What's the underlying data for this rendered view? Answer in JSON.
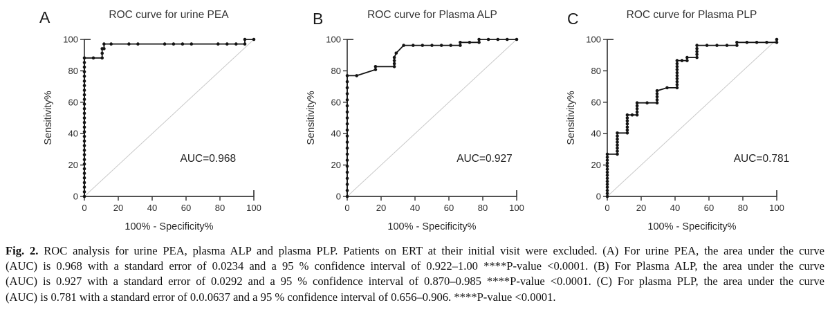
{
  "colors": {
    "curve": "#141414",
    "diagonal": "#c9c9c9",
    "axis": "#3a3a3a",
    "text": "#2a2a2a"
  },
  "caption": {
    "fig_label": "Fig. 2.",
    "lines": [
      "ROC analysis for urine PEA, plasma ALP and plasma PLP. Patients on ERT at their initial visit were excluded. (A) For urine PEA, the area under the curve",
      "(AUC) is 0.968 with a standard error of 0.0234 and a 95 % confidence interval of 0.922–1.00 ****P-value <0.0001. (B) For Plasma ALP, the area under the curve",
      "(AUC) is 0.927 with a standard error of 0.0292 and a 95 % confidence interval of 0.870–0.985 ****P-value <0.0001. (C) For plasma PLP, the area under the curve",
      "(AUC) is 0.781 with a standard error of 0.0.0637 and a 95 % confidence interval of 0.656–0.906. ****P-value <0.0001."
    ]
  },
  "chart_data": [
    {
      "type": "line",
      "panel": "A",
      "title": "ROC curve for urine PEA",
      "xlabel": "100% - Specificity%",
      "ylabel": "Sensitivity%",
      "xlim": [
        0,
        100
      ],
      "ylim": [
        0,
        100
      ],
      "xticks": [
        0,
        20,
        40,
        60,
        80,
        100
      ],
      "yticks": [
        0,
        20,
        40,
        60,
        80,
        100
      ],
      "diagonal": true,
      "auc": {
        "label": "AUC=0.968",
        "x": 73,
        "y": 22
      },
      "series": [
        {
          "name": "ROC urine PEA",
          "points": [
            [
              0,
              0
            ],
            [
              0,
              2.9
            ],
            [
              0,
              5.9
            ],
            [
              0,
              8.8
            ],
            [
              0,
              11.8
            ],
            [
              0,
              14.7
            ],
            [
              0,
              17.6
            ],
            [
              0,
              20.6
            ],
            [
              0,
              23.5
            ],
            [
              0,
              26.5
            ],
            [
              0,
              29.4
            ],
            [
              0,
              32.4
            ],
            [
              0,
              35.3
            ],
            [
              0,
              38.2
            ],
            [
              0,
              41.2
            ],
            [
              0,
              44.1
            ],
            [
              0,
              47.1
            ],
            [
              0,
              50
            ],
            [
              0,
              52.9
            ],
            [
              0,
              55.9
            ],
            [
              0,
              58.8
            ],
            [
              0,
              61.8
            ],
            [
              0,
              64.7
            ],
            [
              0,
              67.6
            ],
            [
              0,
              70.6
            ],
            [
              0,
              73.5
            ],
            [
              0,
              76.5
            ],
            [
              0,
              79.4
            ],
            [
              0,
              82.4
            ],
            [
              0,
              85.3
            ],
            [
              0,
              88.2
            ],
            [
              5.3,
              88.2
            ],
            [
              10.5,
              88.2
            ],
            [
              10.5,
              91.2
            ],
            [
              10.5,
              94.1
            ],
            [
              11.6,
              94.1
            ],
            [
              11.6,
              97.1
            ],
            [
              15.8,
              97.1
            ],
            [
              26.3,
              97.1
            ],
            [
              31.6,
              97.1
            ],
            [
              47.4,
              97.1
            ],
            [
              52.6,
              97.1
            ],
            [
              57.9,
              97.1
            ],
            [
              63.2,
              97.1
            ],
            [
              78.9,
              97.1
            ],
            [
              84.2,
              97.1
            ],
            [
              89.5,
              97.1
            ],
            [
              94.7,
              97.1
            ],
            [
              94.7,
              100
            ],
            [
              100,
              100
            ]
          ]
        }
      ]
    },
    {
      "type": "line",
      "panel": "B",
      "title": "ROC curve for Plasma ALP",
      "xlabel": "100% - Specificity%",
      "ylabel": "Sensitivity%",
      "xlim": [
        0,
        100
      ],
      "ylim": [
        0,
        100
      ],
      "xticks": [
        0,
        20,
        40,
        60,
        80,
        100
      ],
      "yticks": [
        0,
        20,
        40,
        60,
        80,
        100
      ],
      "diagonal": true,
      "auc": {
        "label": "AUC=0.927",
        "x": 81,
        "y": 22
      },
      "series": [
        {
          "name": "ROC Plasma ALP",
          "points": [
            [
              0,
              0
            ],
            [
              0,
              3.8
            ],
            [
              0,
              7.7
            ],
            [
              0,
              11.5
            ],
            [
              0,
              15.4
            ],
            [
              0,
              19.2
            ],
            [
              0,
              23.1
            ],
            [
              0,
              26.9
            ],
            [
              0,
              30.8
            ],
            [
              0,
              34.6
            ],
            [
              0,
              38.5
            ],
            [
              0,
              42.3
            ],
            [
              0,
              46.2
            ],
            [
              0,
              50
            ],
            [
              0,
              53.8
            ],
            [
              0,
              57.7
            ],
            [
              0,
              61.5
            ],
            [
              0,
              65.4
            ],
            [
              0,
              69.2
            ],
            [
              0,
              73.1
            ],
            [
              0,
              76.9
            ],
            [
              5.6,
              76.9
            ],
            [
              16.7,
              80.8
            ],
            [
              16.7,
              82.7
            ],
            [
              27.8,
              82.7
            ],
            [
              27.8,
              84.6
            ],
            [
              27.8,
              86.5
            ],
            [
              27.8,
              88.5
            ],
            [
              28.9,
              91.3
            ],
            [
              33.3,
              96.2
            ],
            [
              38.9,
              96.2
            ],
            [
              44.4,
              96.2
            ],
            [
              50,
              96.2
            ],
            [
              55.6,
              96.2
            ],
            [
              61.1,
              96.2
            ],
            [
              66.7,
              96.2
            ],
            [
              66.7,
              98.1
            ],
            [
              72.2,
              98.1
            ],
            [
              77.8,
              98.1
            ],
            [
              77.8,
              100
            ],
            [
              83.3,
              100
            ],
            [
              88.9,
              100
            ],
            [
              94.4,
              100
            ],
            [
              100,
              100
            ]
          ]
        }
      ]
    },
    {
      "type": "line",
      "panel": "C",
      "title": "ROC curve for Plasma PLP",
      "xlabel": "100% - Specificity%",
      "ylabel": "Sensitivity%",
      "xlim": [
        0,
        100
      ],
      "ylim": [
        0,
        100
      ],
      "xticks": [
        0,
        20,
        40,
        60,
        80,
        100
      ],
      "yticks": [
        0,
        20,
        40,
        60,
        80,
        100
      ],
      "diagonal": true,
      "auc": {
        "label": "AUC=0.781",
        "x": 91,
        "y": 22
      },
      "series": [
        {
          "name": "ROC Plasma PLP",
          "points": [
            [
              0,
              0
            ],
            [
              0,
              1.9
            ],
            [
              0,
              3.8
            ],
            [
              0,
              5.8
            ],
            [
              0,
              7.7
            ],
            [
              0,
              9.6
            ],
            [
              0,
              11.5
            ],
            [
              0,
              13.5
            ],
            [
              0,
              15.4
            ],
            [
              0,
              17.3
            ],
            [
              0,
              19.2
            ],
            [
              0,
              21.2
            ],
            [
              0,
              23.1
            ],
            [
              0,
              25
            ],
            [
              0,
              26.9
            ],
            [
              5.9,
              26.9
            ],
            [
              5.9,
              28.8
            ],
            [
              5.9,
              30.8
            ],
            [
              5.9,
              32.7
            ],
            [
              5.9,
              34.6
            ],
            [
              5.9,
              36.5
            ],
            [
              5.9,
              38.5
            ],
            [
              5.9,
              40.4
            ],
            [
              11.8,
              40.4
            ],
            [
              11.8,
              42.3
            ],
            [
              11.8,
              44.2
            ],
            [
              11.8,
              46.2
            ],
            [
              11.8,
              48.1
            ],
            [
              11.8,
              50
            ],
            [
              11.8,
              51.9
            ],
            [
              14.7,
              51.9
            ],
            [
              17.6,
              51.9
            ],
            [
              17.6,
              53.8
            ],
            [
              17.6,
              55.8
            ],
            [
              17.6,
              57.7
            ],
            [
              17.6,
              59.6
            ],
            [
              23.5,
              59.6
            ],
            [
              29.4,
              59.6
            ],
            [
              29.4,
              61.5
            ],
            [
              29.4,
              63.5
            ],
            [
              29.4,
              65.4
            ],
            [
              29.4,
              67.3
            ],
            [
              35.3,
              69.2
            ],
            [
              41.2,
              69.2
            ],
            [
              41.2,
              71.2
            ],
            [
              41.2,
              73.1
            ],
            [
              41.2,
              75
            ],
            [
              41.2,
              76.9
            ],
            [
              41.2,
              78.8
            ],
            [
              41.2,
              80.8
            ],
            [
              41.2,
              82.7
            ],
            [
              41.2,
              84.6
            ],
            [
              41.2,
              86.5
            ],
            [
              44.1,
              86.5
            ],
            [
              47.1,
              86.5
            ],
            [
              47.1,
              88.5
            ],
            [
              52.9,
              88.5
            ],
            [
              52.9,
              90.4
            ],
            [
              52.9,
              92.3
            ],
            [
              52.9,
              94.2
            ],
            [
              52.9,
              96.2
            ],
            [
              58.8,
              96.2
            ],
            [
              64.7,
              96.2
            ],
            [
              70.6,
              96.2
            ],
            [
              76.5,
              96.2
            ],
            [
              76.5,
              98.1
            ],
            [
              82.4,
              98.1
            ],
            [
              88.2,
              98.1
            ],
            [
              94.1,
              98.1
            ],
            [
              100,
              98.1
            ],
            [
              100,
              100
            ]
          ]
        }
      ]
    }
  ]
}
